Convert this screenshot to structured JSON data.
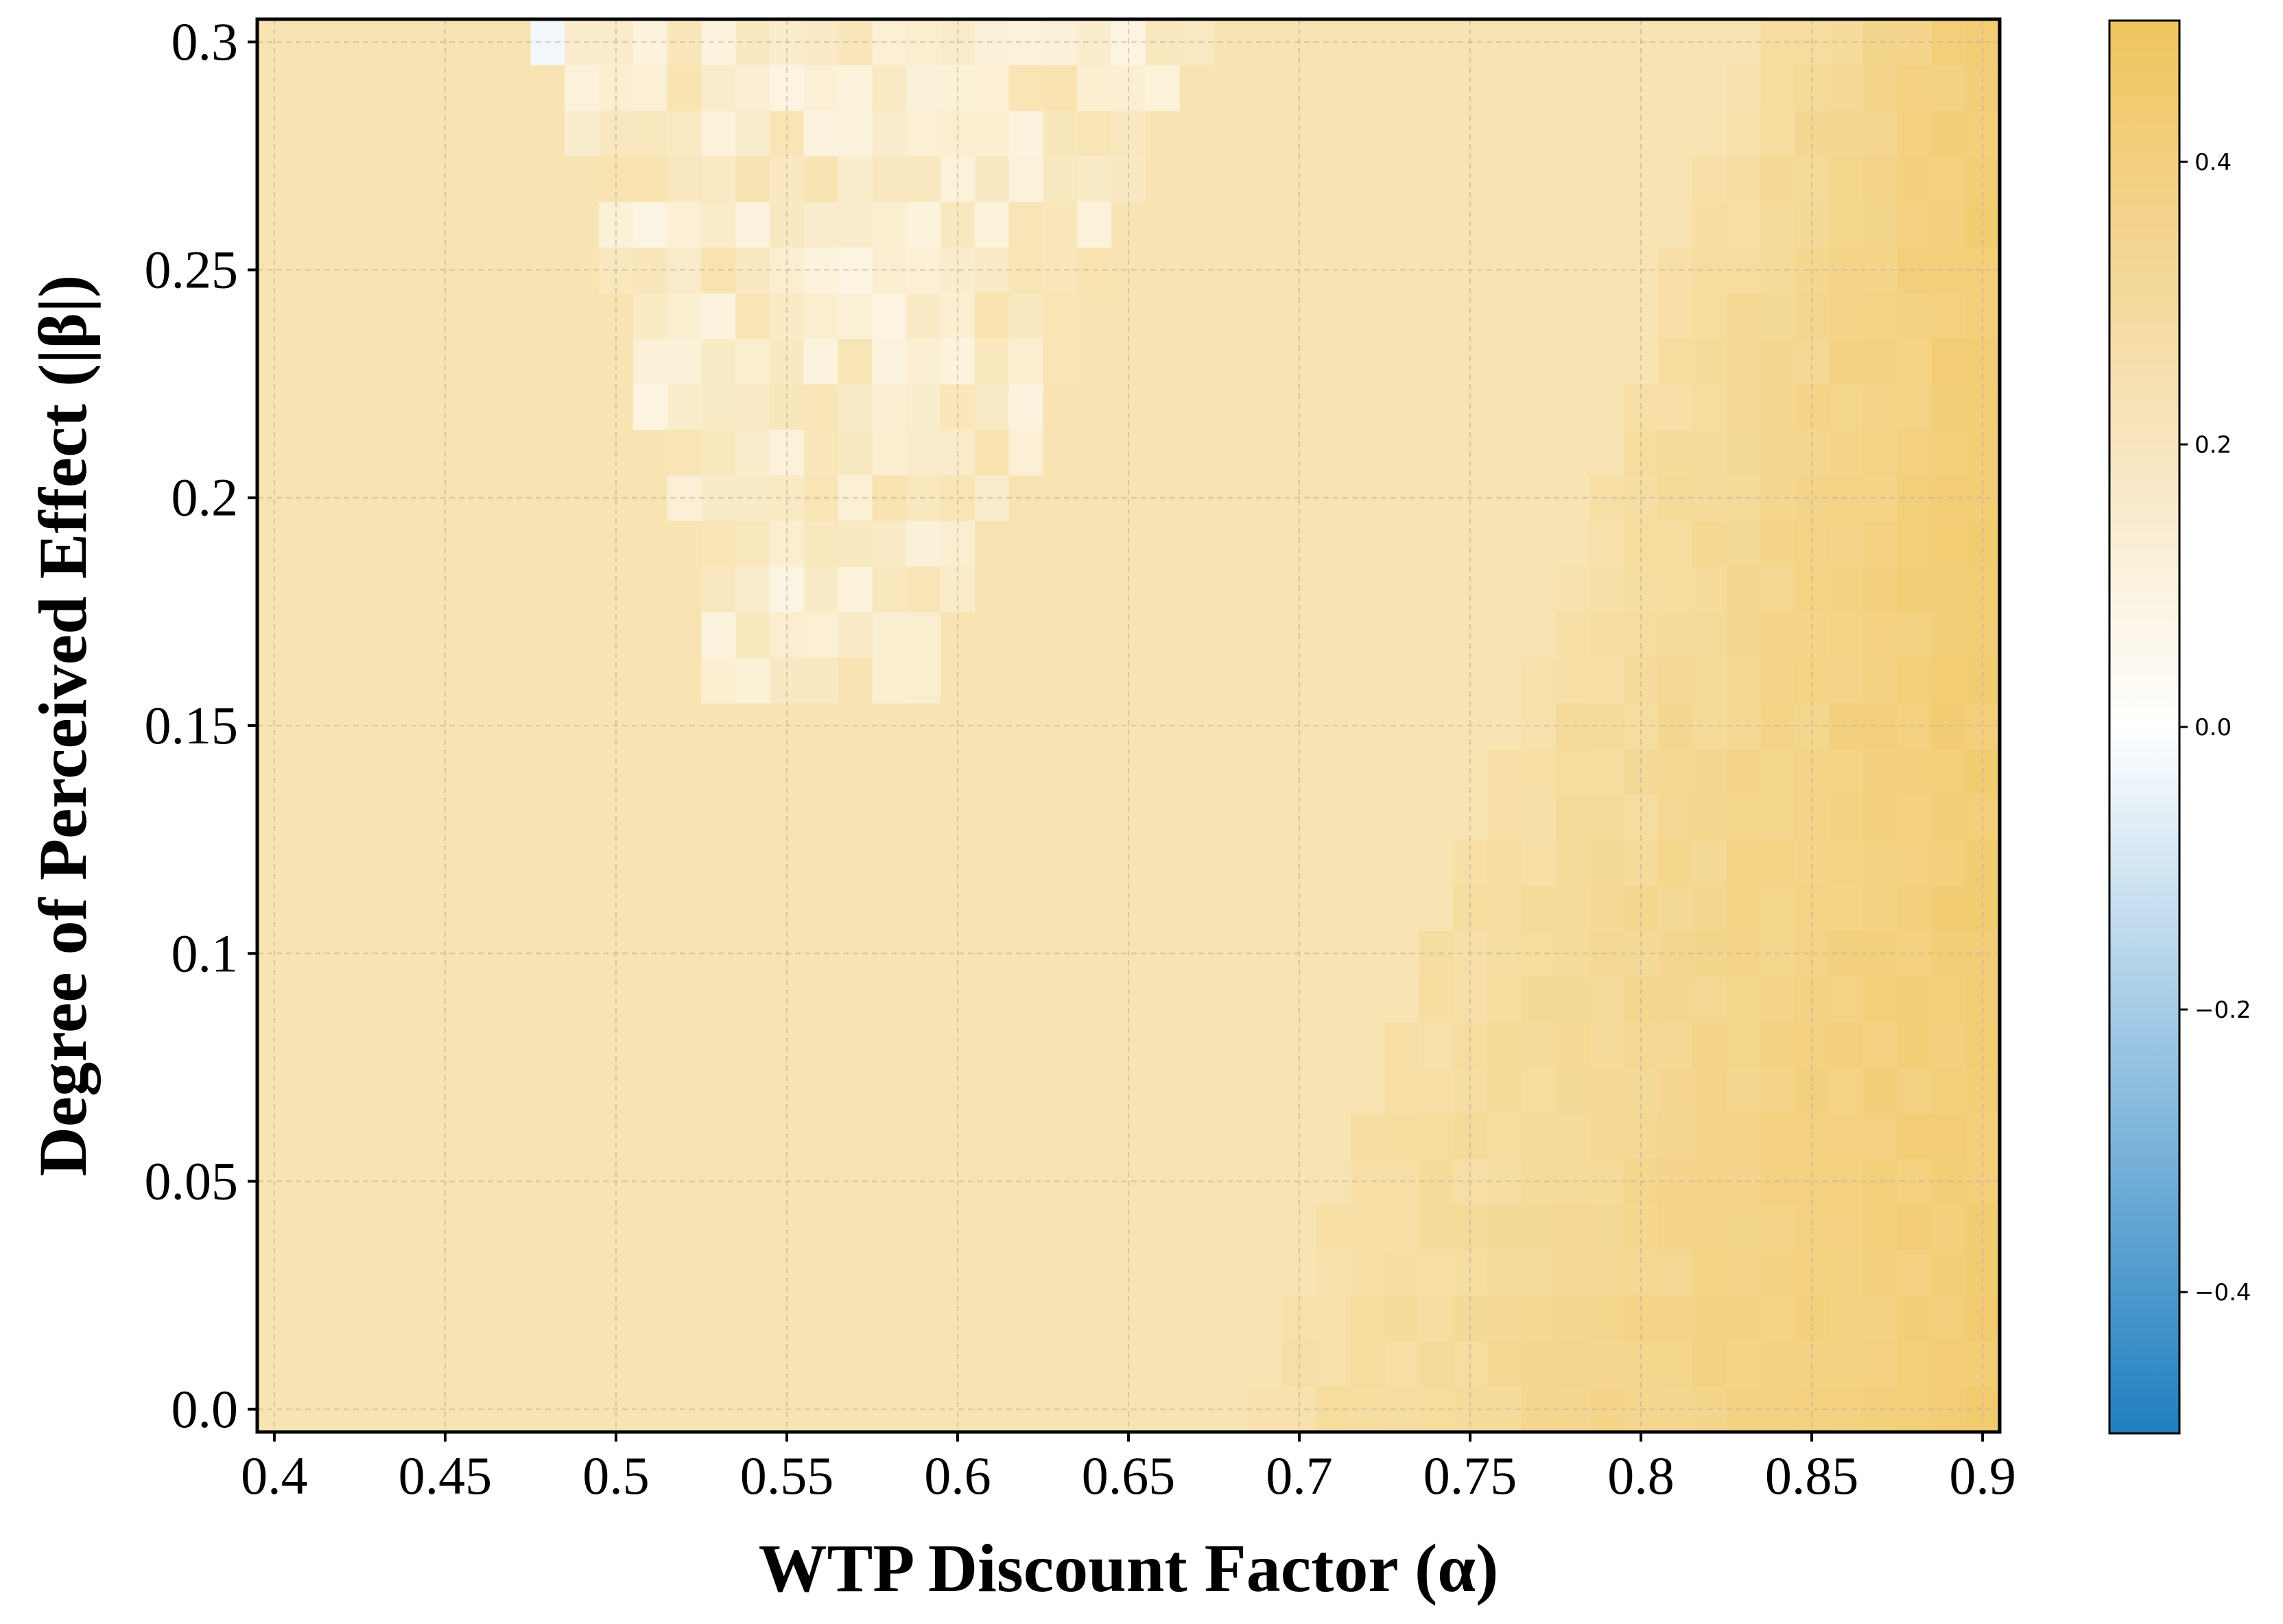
{
  "chart_data": {
    "type": "heatmap",
    "xlabel": "WTP Discount Factor (α)",
    "ylabel": "Degree of Perceived Effect (|β|)",
    "xlim": [
      0.395,
      0.905
    ],
    "ylim": [
      -0.005,
      0.305
    ],
    "xticks": [
      "0.4",
      "0.45",
      "0.5",
      "0.55",
      "0.6",
      "0.65",
      "0.7",
      "0.75",
      "0.8",
      "0.85",
      "0.9"
    ],
    "xtick_values": [
      0.4,
      0.45,
      0.5,
      0.55,
      0.6,
      0.65,
      0.7,
      0.75,
      0.8,
      0.85,
      0.9
    ],
    "yticks": [
      "0.0",
      "0.05",
      "0.1",
      "0.15",
      "0.2",
      "0.25",
      "0.3"
    ],
    "ytick_values": [
      0.0,
      0.05,
      0.1,
      0.15,
      0.2,
      0.25,
      0.3
    ],
    "grid": true,
    "grid_cells": {
      "x_start": 0.395,
      "x_end": 0.905,
      "nx": 51,
      "y_start": -0.005,
      "y_end": 0.305,
      "ny": 31
    },
    "base_value": 0.24,
    "regions": [
      {
        "description_value": "upper-left pale wedge",
        "value": 0.18
      },
      {
        "description_value": "right-side higher band",
        "value_min": 0.28,
        "value_max": 0.42
      }
    ],
    "colorbar": {
      "range": [
        -0.5,
        0.5
      ],
      "ticks": [
        "0.4",
        "0.2",
        "0.0",
        "−0.2",
        "−0.4"
      ],
      "tick_values": [
        0.4,
        0.2,
        0.0,
        -0.2,
        -0.4
      ],
      "colors": {
        "low": "#1f7fbf",
        "mid": "#ffffff",
        "high": "#f0c55e"
      }
    }
  }
}
